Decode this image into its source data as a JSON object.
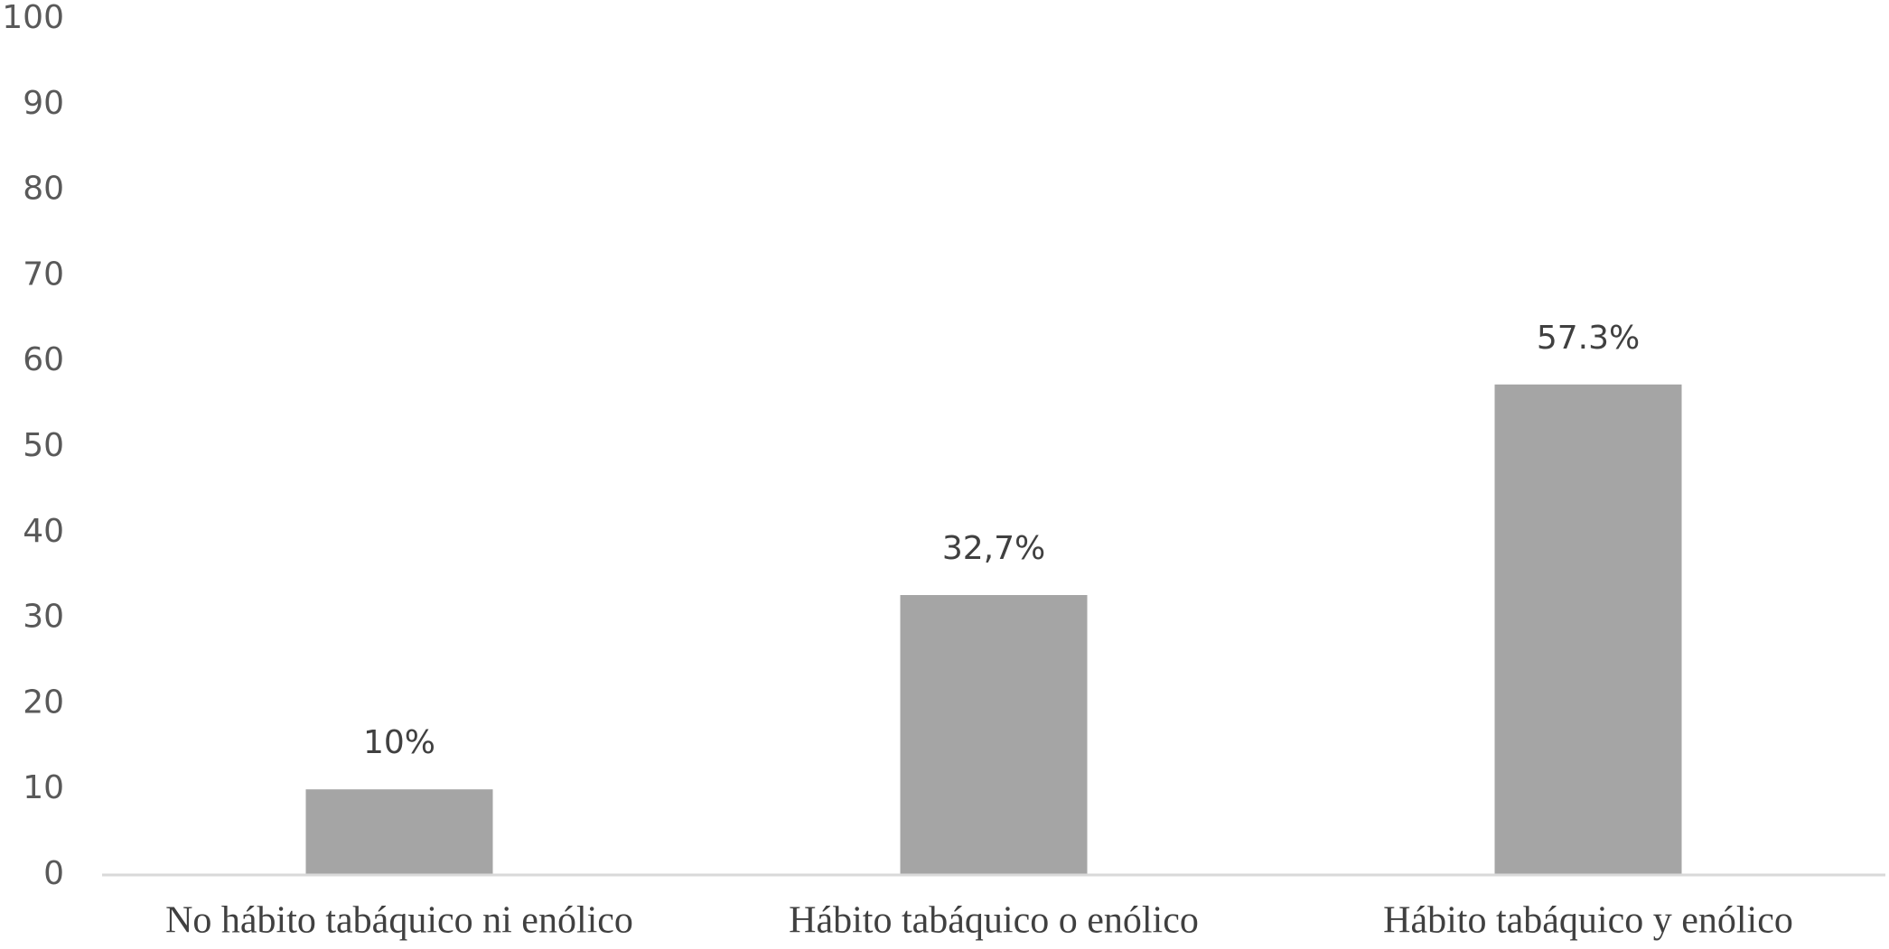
{
  "chart_data": {
    "type": "bar",
    "categories": [
      "No hábito tabáquico ni enólico",
      "Hábito tabáquico o enólico",
      "Hábito tabáquico y enólico"
    ],
    "values": [
      10,
      32.7,
      57.3
    ],
    "value_labels": [
      "10%",
      "32,7%",
      "57.3%"
    ],
    "color": "#a5a5a5",
    "ylim": [
      0,
      100
    ],
    "yticks": [
      0,
      10,
      20,
      30,
      40,
      50,
      60,
      70,
      80,
      90,
      100
    ],
    "grid": false
  }
}
